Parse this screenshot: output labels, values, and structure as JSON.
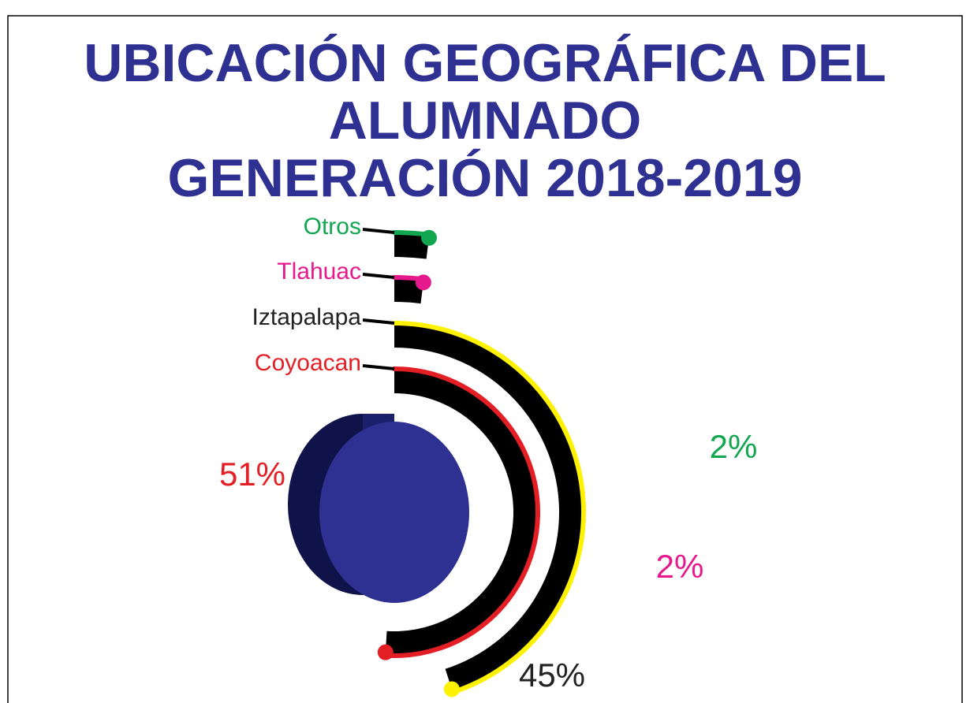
{
  "chart_data": {
    "type": "radial_bar",
    "title": [
      "UBICACIÓN GEOGRÁFICA DEL",
      "ALUMNADO",
      "GENERACIÓN 2018-2019"
    ],
    "categories": [
      "Otros",
      "Tlahuac",
      "Iztapalapa",
      "Coyoacan"
    ],
    "values": [
      2,
      2,
      45,
      51
    ],
    "value_labels": [
      "2%",
      "2%",
      "45%",
      "51%"
    ],
    "colors": [
      "#12a650",
      "#e6198c",
      "#fff200",
      "#e31e24"
    ],
    "label_colors": [
      "#12a650",
      "#e6198c",
      "#222222",
      "#e31e24"
    ],
    "center_color": "#2e3192"
  }
}
